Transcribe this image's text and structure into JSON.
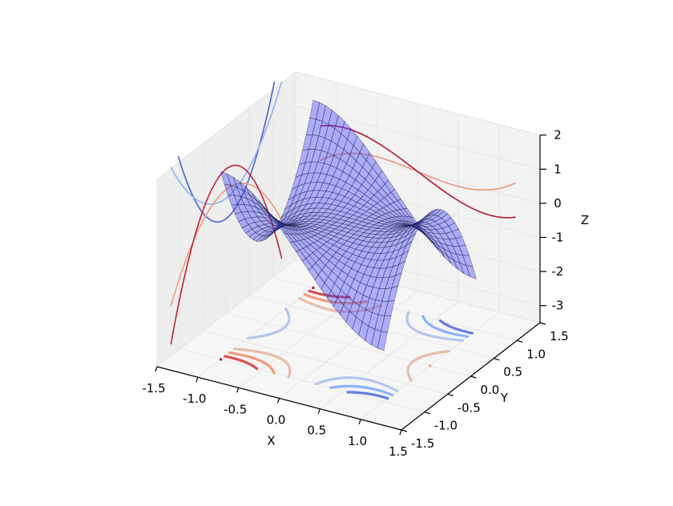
{
  "chart_data": {
    "type": "surface3d",
    "title": "",
    "xlabel": "X",
    "ylabel": "Y",
    "zlabel": "Z",
    "xlim": [
      -1.5,
      1.5
    ],
    "ylim": [
      -1.5,
      1.5
    ],
    "zlim": [
      -3.5,
      2
    ],
    "x_ticks": [
      "-1.5",
      "-1.0",
      "-0.5",
      "0.0",
      "0.5",
      "1.0",
      "1.5"
    ],
    "y_ticks": [
      "-1.5",
      "-1.0",
      "-0.5",
      "0.0",
      "0.5",
      "1.0",
      "1.5"
    ],
    "z_ticks": [
      "-3",
      "-2",
      "-1",
      "0",
      "1",
      "2"
    ],
    "surface": {
      "function": "z = x^3 - 3*x*y^2 (monkey saddle)",
      "x_range": [
        -1,
        1
      ],
      "y_range": [
        -1,
        1
      ],
      "color": "#4444ff",
      "alpha": 0.45,
      "edge_color": "#000000"
    },
    "contour_levels": [
      -2.0,
      -1.5,
      -1.0,
      -0.5,
      0.5,
      1.0,
      1.5,
      2.0
    ],
    "contour_colormap": "coolwarm",
    "projections": [
      "z-offset (floor)",
      "x-offset (left wall)",
      "y-offset (back wall)"
    ],
    "grid": true
  },
  "colors": {
    "surface_fill": "#4a4aff",
    "cold": "#3b4cc0",
    "warm": "#b40426",
    "pane": "#f2f2f2"
  }
}
